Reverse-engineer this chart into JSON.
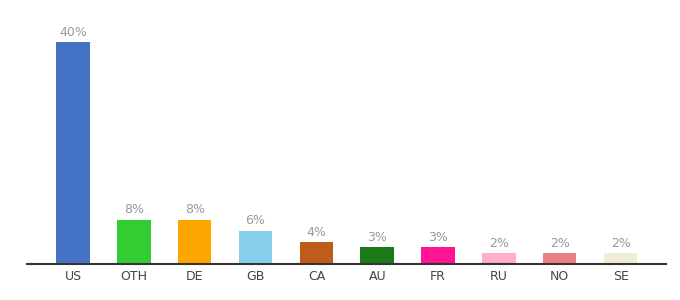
{
  "categories": [
    "US",
    "OTH",
    "DE",
    "GB",
    "CA",
    "AU",
    "FR",
    "RU",
    "NO",
    "SE"
  ],
  "values": [
    40,
    8,
    8,
    6,
    4,
    3,
    3,
    2,
    2,
    2
  ],
  "bar_colors": [
    "#4472C4",
    "#33CC33",
    "#FFA500",
    "#87CEEB",
    "#C05C1A",
    "#1A7A1A",
    "#FF1493",
    "#FFB0C8",
    "#E88080",
    "#F0EDD8"
  ],
  "labels": [
    "40%",
    "8%",
    "8%",
    "6%",
    "4%",
    "3%",
    "3%",
    "2%",
    "2%",
    "2%"
  ],
  "label_color": "#999999",
  "tick_color": "#444444",
  "background_color": "#ffffff",
  "ylim": [
    0,
    46
  ],
  "bar_width": 0.55,
  "label_fontsize": 9,
  "tick_fontsize": 9,
  "figsize": [
    6.8,
    3.0
  ],
  "dpi": 100
}
